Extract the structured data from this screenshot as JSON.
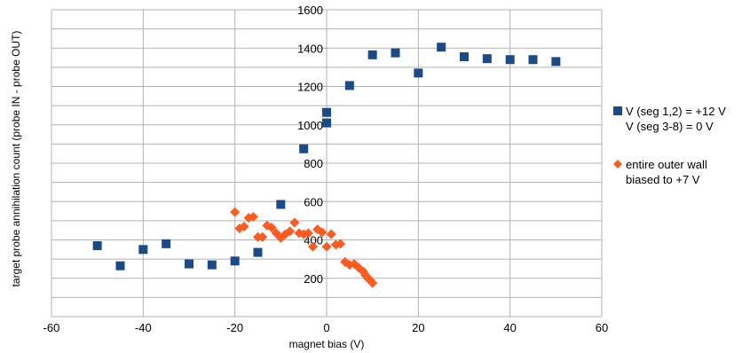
{
  "chart_data": {
    "type": "scatter",
    "xlabel": "magnet bias (V)",
    "ylabel": "target probe annihilation count (probe IN - probe OUT)",
    "xlim": [
      -60,
      60
    ],
    "ylim": [
      0,
      1600
    ],
    "xticks": [
      -60,
      -40,
      -20,
      0,
      20,
      40,
      60
    ],
    "yticks": [
      200,
      400,
      600,
      800,
      1000,
      1200,
      1400,
      1600
    ],
    "grid": true,
    "legend_position": "right",
    "series": [
      {
        "name_lines": [
          "V (seg 1,2) = +12 V",
          "V (seg 3-8) = 0 V"
        ],
        "color": "#1a4a8a",
        "marker": "square",
        "x": [
          -50,
          -45,
          -40,
          -35,
          -30,
          -25,
          -20,
          -15,
          -10,
          -5,
          0,
          0,
          5,
          10,
          15,
          20,
          25,
          30,
          35,
          40,
          45,
          50
        ],
        "y": [
          370,
          265,
          350,
          380,
          275,
          270,
          290,
          335,
          585,
          875,
          1010,
          1065,
          1205,
          1365,
          1375,
          1270,
          1405,
          1355,
          1345,
          1340,
          1340,
          1330
        ]
      },
      {
        "name_lines": [
          "entire outer wall",
          "biased to +7 V"
        ],
        "color": "#ff5a1f",
        "marker": "diamond",
        "x": [
          -20,
          -19,
          -18,
          -17,
          -16,
          -15,
          -14,
          -13,
          -12,
          -11,
          -10,
          -9,
          -8,
          -7,
          -6,
          -5,
          -4,
          -3,
          -2,
          -1,
          0,
          1,
          2,
          3,
          4,
          5,
          6,
          7,
          8,
          8.5,
          9,
          9.5,
          10
        ],
        "y": [
          545,
          460,
          470,
          515,
          520,
          415,
          415,
          475,
          465,
          435,
          410,
          430,
          445,
          490,
          435,
          430,
          435,
          365,
          455,
          440,
          365,
          430,
          375,
          380,
          285,
          270,
          275,
          255,
          235,
          215,
          200,
          190,
          175
        ]
      }
    ]
  }
}
